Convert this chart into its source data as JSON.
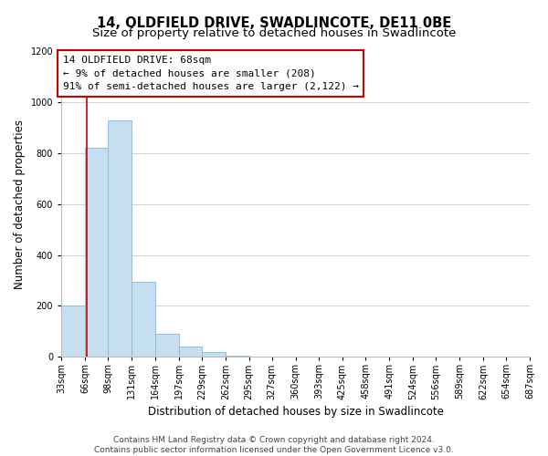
{
  "title": "14, OLDFIELD DRIVE, SWADLINCOTE, DE11 0BE",
  "subtitle": "Size of property relative to detached houses in Swadlincote",
  "xlabel": "Distribution of detached houses by size in Swadlincote",
  "ylabel": "Number of detached properties",
  "bin_edges": [
    33,
    66,
    98,
    131,
    164,
    197,
    229,
    262,
    295,
    327,
    360,
    393,
    425,
    458,
    491,
    524,
    556,
    589,
    622,
    654,
    687
  ],
  "bin_labels": [
    "33sqm",
    "66sqm",
    "98sqm",
    "131sqm",
    "164sqm",
    "197sqm",
    "229sqm",
    "262sqm",
    "295sqm",
    "327sqm",
    "360sqm",
    "393sqm",
    "425sqm",
    "458sqm",
    "491sqm",
    "524sqm",
    "556sqm",
    "589sqm",
    "622sqm",
    "654sqm",
    "687sqm"
  ],
  "bar_heights": [
    200,
    820,
    930,
    295,
    90,
    40,
    20,
    5,
    0,
    0,
    0,
    0,
    0,
    0,
    0,
    0,
    0,
    0,
    0,
    0
  ],
  "bar_color": "#c6dff0",
  "bar_edge_color": "#87b8d4",
  "property_line_x": 68,
  "property_line_color": "#cc0000",
  "annotation_line1": "14 OLDFIELD DRIVE: 68sqm",
  "annotation_line2": "← 9% of detached houses are smaller (208)",
  "annotation_line3": "91% of semi-detached houses are larger (2,122) →",
  "annotation_box_color": "#ffffff",
  "annotation_box_edge_color": "#cc0000",
  "ylim": [
    0,
    1200
  ],
  "yticks": [
    0,
    200,
    400,
    600,
    800,
    1000,
    1200
  ],
  "footer_line1": "Contains HM Land Registry data © Crown copyright and database right 2024.",
  "footer_line2": "Contains public sector information licensed under the Open Government Licence v3.0.",
  "bg_color": "#ffffff",
  "grid_color": "#cccccc",
  "title_fontsize": 10.5,
  "subtitle_fontsize": 9.5,
  "axis_label_fontsize": 8.5,
  "tick_fontsize": 7,
  "annotation_fontsize": 8,
  "footer_fontsize": 6.5
}
